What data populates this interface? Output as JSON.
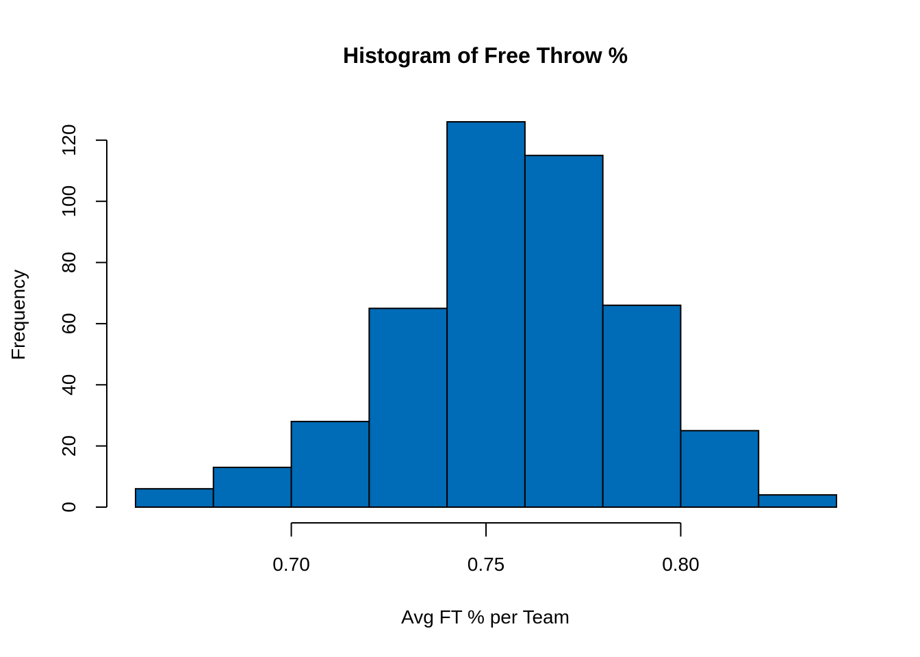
{
  "chart_data": {
    "type": "bar",
    "title": "Histogram of Free Throw %",
    "xlabel": "Avg FT % per Team",
    "ylabel": "Frequency",
    "bins": [
      {
        "x0": 0.66,
        "x1": 0.68,
        "count": 6
      },
      {
        "x0": 0.68,
        "x1": 0.7,
        "count": 13
      },
      {
        "x0": 0.7,
        "x1": 0.72,
        "count": 28
      },
      {
        "x0": 0.72,
        "x1": 0.74,
        "count": 65
      },
      {
        "x0": 0.74,
        "x1": 0.76,
        "count": 126
      },
      {
        "x0": 0.76,
        "x1": 0.78,
        "count": 115
      },
      {
        "x0": 0.78,
        "x1": 0.8,
        "count": 66
      },
      {
        "x0": 0.8,
        "x1": 0.82,
        "count": 25
      },
      {
        "x0": 0.82,
        "x1": 0.84,
        "count": 4
      }
    ],
    "xticks": [
      0.7,
      0.75,
      0.8
    ],
    "xtick_labels": [
      "0.70",
      "0.75",
      "0.80"
    ],
    "yticks": [
      0,
      20,
      40,
      60,
      80,
      100,
      120
    ],
    "ytick_labels": [
      "0",
      "20",
      "40",
      "60",
      "80",
      "100",
      "120"
    ],
    "xlim": [
      0.66,
      0.84
    ],
    "ylim": [
      0,
      126
    ],
    "bar_color": "#006BB6",
    "grid": false,
    "legend": false
  }
}
